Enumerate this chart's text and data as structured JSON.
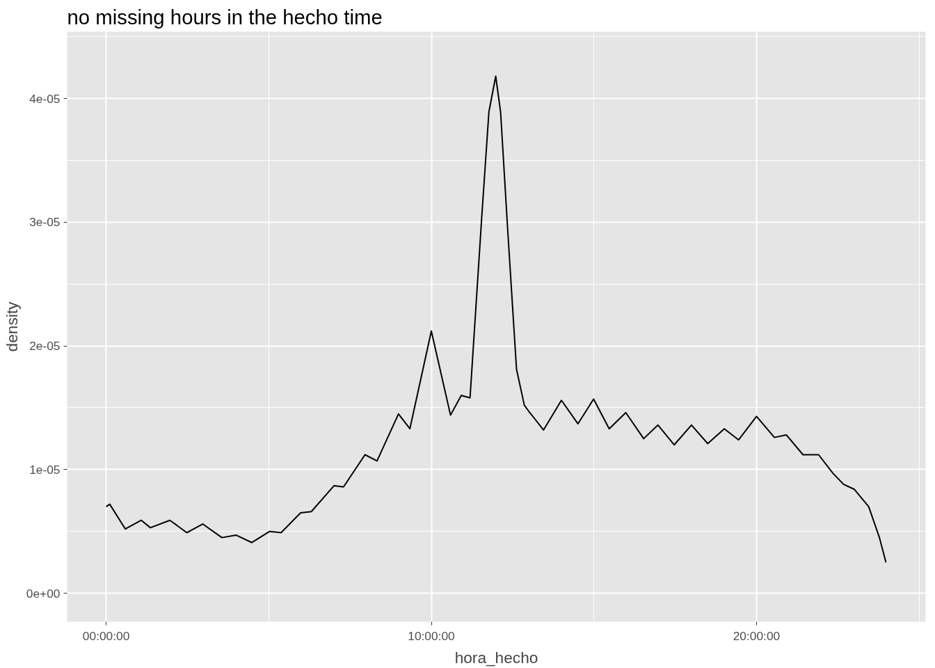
{
  "chart_data": {
    "type": "line",
    "title": "no missing hours in the hecho time",
    "xlabel": "hora_hecho",
    "ylabel": "density",
    "x": [
      0,
      0.11,
      0.59,
      1.08,
      1.36,
      1.96,
      2.48,
      2.97,
      3.56,
      4.0,
      4.48,
      5.03,
      5.38,
      5.98,
      6.31,
      7.01,
      7.3,
      7.96,
      8.33,
      8.99,
      9.34,
      10.0,
      10.59,
      10.92,
      11.19,
      11.55,
      11.77,
      11.98,
      12.13,
      12.35,
      12.62,
      12.86,
      13.0,
      13.45,
      14.0,
      14.51,
      14.99,
      15.47,
      15.98,
      16.53,
      16.97,
      17.47,
      18.0,
      18.5,
      19.01,
      19.45,
      20.0,
      20.55,
      20.92,
      21.43,
      21.91,
      22.35,
      22.68,
      23.01,
      23.45,
      23.78,
      23.98
    ],
    "series": [
      {
        "color": "#000000",
        "values": [
          7e-06,
          7.2e-06,
          5.2e-06,
          5.9e-06,
          5.3e-06,
          5.9e-06,
          4.9e-06,
          5.6e-06,
          4.5e-06,
          4.7e-06,
          4.1e-06,
          5e-06,
          4.9e-06,
          6.5e-06,
          6.6e-06,
          8.7e-06,
          8.6e-06,
          1.12e-05,
          1.07e-05,
          1.45e-05,
          1.33e-05,
          2.12e-05,
          1.44e-05,
          1.6e-05,
          1.58e-05,
          3.04e-05,
          3.89e-05,
          4.18e-05,
          3.89e-05,
          2.93e-05,
          1.81e-05,
          1.52e-05,
          1.47e-05,
          1.32e-05,
          1.56e-05,
          1.37e-05,
          1.57e-05,
          1.33e-05,
          1.46e-05,
          1.25e-05,
          1.36e-05,
          1.2e-05,
          1.36e-05,
          1.21e-05,
          1.33e-05,
          1.24e-05,
          1.43e-05,
          1.26e-05,
          1.28e-05,
          1.12e-05,
          1.12e-05,
          9.7e-06,
          8.8e-06,
          8.4e-06,
          7e-06,
          4.5e-06,
          2.5e-06
        ]
      }
    ],
    "xlim": [
      -1.2,
      25.2
    ],
    "ylim": [
      -2.3e-06,
      4.54e-05
    ],
    "xticks": [
      {
        "value": 0,
        "label": "00:00:00"
      },
      {
        "value": 10,
        "label": "10:00:00"
      },
      {
        "value": 20,
        "label": "20:00:00"
      }
    ],
    "yticks": [
      {
        "value": 0,
        "label": "0e+00"
      },
      {
        "value": 1e-05,
        "label": "1e-05"
      },
      {
        "value": 2e-05,
        "label": "2e-05"
      },
      {
        "value": 3e-05,
        "label": "3e-05"
      },
      {
        "value": 4e-05,
        "label": "4e-05"
      }
    ],
    "grid": true
  }
}
